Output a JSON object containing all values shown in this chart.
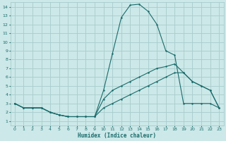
{
  "title": "",
  "xlabel": "Humidex (Indice chaleur)",
  "ylabel": "",
  "bg_color": "#cce8e8",
  "line_color": "#1a6b6b",
  "grid_color": "#a8cccc",
  "xlim": [
    -0.5,
    23.5
  ],
  "ylim": [
    0.5,
    14.5
  ],
  "xticks": [
    0,
    1,
    2,
    3,
    4,
    5,
    6,
    7,
    8,
    9,
    10,
    11,
    12,
    13,
    14,
    15,
    16,
    17,
    18,
    19,
    20,
    21,
    22,
    23
  ],
  "yticks": [
    1,
    2,
    3,
    4,
    5,
    6,
    7,
    8,
    9,
    10,
    11,
    12,
    13,
    14
  ],
  "curve_peak_x": [
    0,
    1,
    2,
    3,
    4,
    5,
    6,
    7,
    8,
    9,
    10,
    11,
    12,
    13,
    14,
    15,
    16,
    17,
    18,
    19,
    20,
    21,
    22,
    23
  ],
  "curve_peak_y": [
    3,
    2.5,
    2.5,
    2.5,
    2.0,
    1.7,
    1.5,
    1.5,
    1.5,
    1.5,
    4.5,
    8.7,
    12.8,
    14.2,
    14.3,
    13.5,
    12.0,
    9.0,
    8.5,
    3.0,
    3.0,
    3.0,
    3.0,
    2.5
  ],
  "curve_mid_x": [
    0,
    1,
    2,
    3,
    4,
    5,
    6,
    7,
    8,
    9,
    10,
    11,
    12,
    13,
    14,
    15,
    16,
    17,
    18,
    19,
    20,
    21,
    22,
    23
  ],
  "curve_mid_y": [
    3,
    2.5,
    2.5,
    2.5,
    2.0,
    1.7,
    1.5,
    1.5,
    1.5,
    1.5,
    3.5,
    4.5,
    5.0,
    5.5,
    6.0,
    6.5,
    7.0,
    7.2,
    7.5,
    6.5,
    5.5,
    5.0,
    4.5,
    2.5
  ],
  "curve_bot_x": [
    0,
    1,
    2,
    3,
    4,
    5,
    6,
    7,
    8,
    9,
    10,
    11,
    12,
    13,
    14,
    15,
    16,
    17,
    18,
    19,
    20,
    21,
    22,
    23
  ],
  "curve_bot_y": [
    3,
    2.5,
    2.5,
    2.5,
    2.0,
    1.7,
    1.5,
    1.5,
    1.5,
    1.5,
    2.5,
    3.0,
    3.5,
    4.0,
    4.5,
    5.0,
    5.5,
    6.0,
    6.5,
    6.5,
    5.5,
    5.0,
    4.5,
    2.5
  ]
}
